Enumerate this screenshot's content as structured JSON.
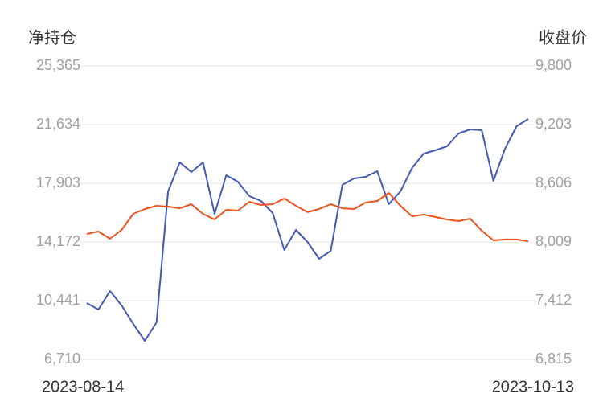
{
  "chart_data": {
    "type": "line",
    "y_label": "净持仓",
    "y2_label": "收盘价",
    "categories": [
      "2023-08-14",
      null,
      null,
      null,
      null,
      null,
      null,
      null,
      null,
      null,
      null,
      null,
      null,
      null,
      null,
      null,
      null,
      null,
      null,
      null,
      null,
      null,
      null,
      null,
      null,
      null,
      null,
      null,
      null,
      null,
      null,
      null,
      null,
      null,
      null,
      null,
      null,
      null,
      "2023-10-13"
    ],
    "series": [
      {
        "name": "净持仓",
        "color": "#4459b8",
        "axis": "y",
        "values": [
          10288,
          9879,
          11054,
          10134,
          8959,
          7885,
          9061,
          17392,
          19232,
          18618,
          19232,
          15961,
          18414,
          18005,
          17085,
          16779,
          16012,
          13661,
          14939,
          14172,
          13099,
          13610,
          17801,
          18210,
          18312,
          18670,
          16574,
          17392,
          18874,
          19794,
          19998,
          20254,
          21072,
          21327,
          21276,
          18056,
          20101,
          21532,
          21992
        ]
      },
      {
        "name": "收盘价",
        "color": "#f0541e",
        "axis": "y2",
        "values": [
          8091,
          8115,
          8042,
          8132,
          8295,
          8344,
          8377,
          8369,
          8352,
          8393,
          8295,
          8238,
          8336,
          8328,
          8418,
          8385,
          8393,
          8451,
          8377,
          8312,
          8344,
          8393,
          8352,
          8344,
          8410,
          8426,
          8508,
          8377,
          8271,
          8287,
          8263,
          8238,
          8222,
          8246,
          8124,
          8025,
          8034,
          8034,
          8017
        ]
      }
    ],
    "ylim": [
      6710,
      25365
    ],
    "yticks": [
      {
        "value": 6710,
        "label": "6,710"
      },
      {
        "value": 10441,
        "label": "10,441"
      },
      {
        "value": 14172,
        "label": "14,172"
      },
      {
        "value": 17903,
        "label": "17,903"
      },
      {
        "value": 21634,
        "label": "21,634"
      },
      {
        "value": 25365,
        "label": "25,365"
      }
    ],
    "y2lim": [
      6815,
      9800
    ],
    "y2ticks": [
      {
        "value": 6815,
        "label": "6,815"
      },
      {
        "value": 7412,
        "label": "7,412"
      },
      {
        "value": 8009,
        "label": "8,009"
      },
      {
        "value": 8606,
        "label": "8,606"
      },
      {
        "value": 9203,
        "label": "9,203"
      },
      {
        "value": 9800,
        "label": "9,800"
      }
    ],
    "grid": true
  }
}
